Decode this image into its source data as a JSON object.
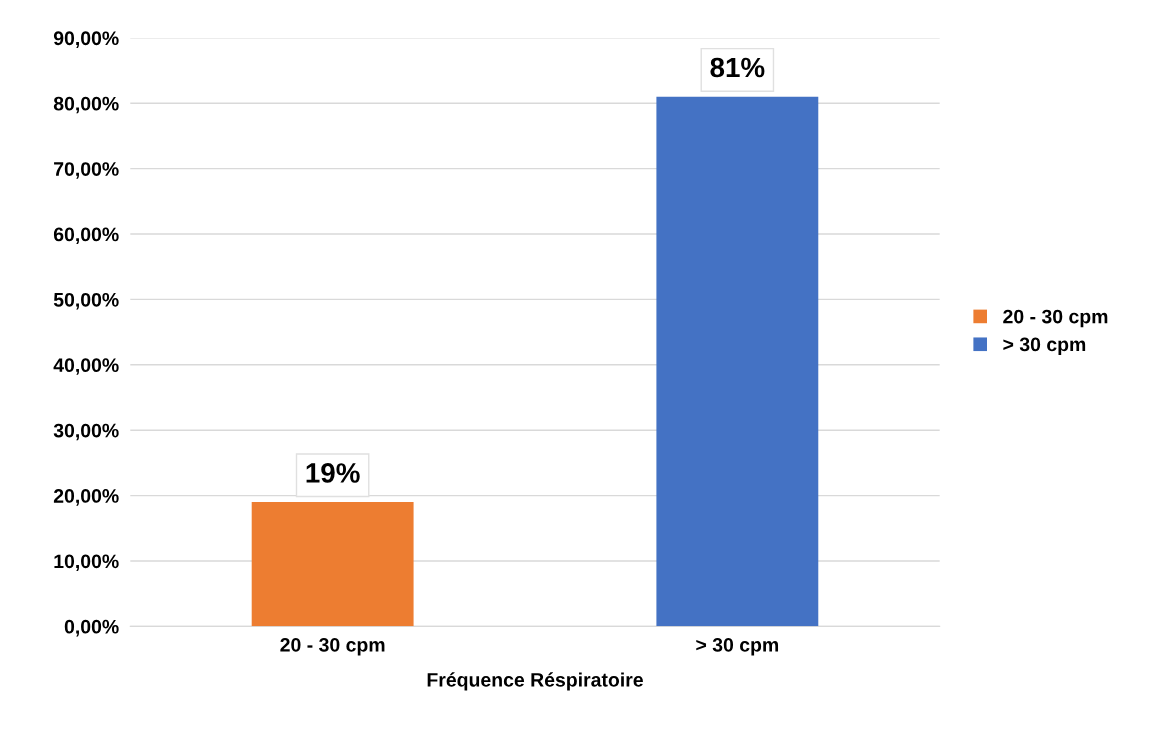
{
  "chart_data": {
    "type": "bar",
    "xlabel": "Fréquence Réspiratoire",
    "categories": [
      "20 - 30 cpm",
      "> 30 cpm"
    ],
    "series": [
      {
        "name": "20 - 30 cpm",
        "color": "#ed7d31",
        "values": [
          19,
          null
        ],
        "value_labels": [
          "19%",
          null
        ]
      },
      {
        "name": "> 30 cpm",
        "color": "#4472c4",
        "values": [
          null,
          81
        ],
        "value_labels": [
          null,
          "81%"
        ]
      }
    ],
    "ylim": [
      0,
      90
    ],
    "yticks": [
      {
        "value": 0,
        "label": "0,00%"
      },
      {
        "value": 10,
        "label": "10,00%"
      },
      {
        "value": 20,
        "label": "20,00%"
      },
      {
        "value": 30,
        "label": "30,00%"
      },
      {
        "value": 40,
        "label": "40,00%"
      },
      {
        "value": 50,
        "label": "50,00%"
      },
      {
        "value": 60,
        "label": "60,00%"
      },
      {
        "value": 70,
        "label": "70,00%"
      },
      {
        "value": 80,
        "label": "80,00%"
      },
      {
        "value": 90,
        "label": "90,00%"
      }
    ],
    "grid": "y",
    "legend": "right"
  }
}
